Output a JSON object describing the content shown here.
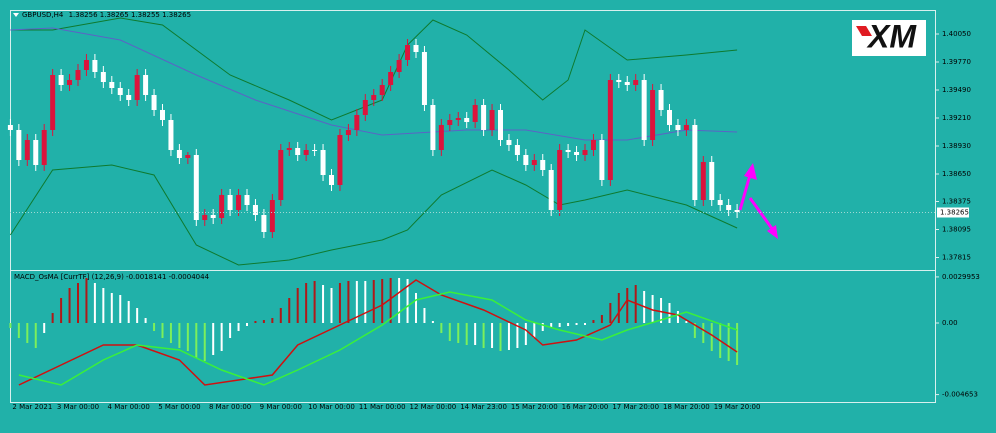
{
  "chart_data": [
    {
      "type": "candlestick",
      "title": "GBPUSD,H4",
      "subtitle": "1.38256 1.38265 1.38255 1.38265",
      "up_color": "#dc143c",
      "down_color": "#ffffff",
      "categories": [
        "2 Mar 2021",
        null,
        null,
        null,
        null,
        null,
        null,
        null,
        "3 Mar 00:00",
        null,
        null,
        null,
        null,
        null,
        "4 Mar 00:00",
        null,
        null,
        null,
        null,
        null,
        "5 Mar 00:00",
        null,
        null,
        null,
        null,
        null,
        "8 Mar 00:00",
        null,
        null,
        null,
        null,
        null,
        "9 Mar 00:00",
        null,
        null,
        null,
        null,
        null,
        "10 Mar 00:00",
        null,
        null,
        null,
        null,
        null,
        "11 Mar 00:00",
        null,
        null,
        null,
        null,
        null,
        "12 Mar 00:00",
        null,
        null,
        null,
        null,
        null,
        "14 Mar 23:00",
        null,
        null,
        null,
        null,
        null,
        "15 Mar 20:00",
        null,
        null,
        null,
        null,
        null,
        "16 Mar 20:00",
        null,
        null,
        null,
        null,
        null,
        "17 Mar 20:00",
        null,
        null,
        null,
        null,
        null,
        "18 Mar 20:00",
        null,
        null,
        null,
        null,
        null,
        "19 Mar 20:00"
      ],
      "ohlc": [
        [
          1.3914,
          1.392,
          1.3903,
          1.3909
        ],
        [
          1.3909,
          1.3915,
          1.3873,
          1.3879
        ],
        [
          1.3879,
          1.3905,
          1.3873,
          1.3899
        ],
        [
          1.3899,
          1.3905,
          1.3868,
          1.3874
        ],
        [
          1.3874,
          1.3915,
          1.3868,
          1.3909
        ],
        [
          1.3909,
          1.397,
          1.3903,
          1.3964
        ],
        [
          1.3964,
          1.397,
          1.3948,
          1.3954
        ],
        [
          1.3954,
          1.3965,
          1.3948,
          1.3959
        ],
        [
          1.3959,
          1.3975,
          1.3953,
          1.3969
        ],
        [
          1.3969,
          1.3985,
          1.3963,
          1.3979
        ],
        [
          1.3979,
          1.3985,
          1.3961,
          1.3967
        ],
        [
          1.3967,
          1.3973,
          1.3951,
          1.3957
        ],
        [
          1.3957,
          1.3963,
          1.3945,
          1.3951
        ],
        [
          1.3951,
          1.3957,
          1.3938,
          1.3944
        ],
        [
          1.3944,
          1.395,
          1.3933,
          1.3939
        ],
        [
          1.3939,
          1.397,
          1.3933,
          1.3964
        ],
        [
          1.3964,
          1.397,
          1.3938,
          1.3944
        ],
        [
          1.3944,
          1.395,
          1.3923,
          1.3929
        ],
        [
          1.3929,
          1.3935,
          1.3913,
          1.3919
        ],
        [
          1.3919,
          1.3925,
          1.3883,
          1.3889
        ],
        [
          1.3889,
          1.3895,
          1.3875,
          1.3881
        ],
        [
          1.3881,
          1.3887,
          1.3875,
          1.3884
        ],
        [
          1.3884,
          1.389,
          1.3813,
          1.3819
        ],
        [
          1.3819,
          1.383,
          1.3813,
          1.3824
        ],
        [
          1.3824,
          1.383,
          1.3815,
          1.3821
        ],
        [
          1.3821,
          1.385,
          1.3815,
          1.3844
        ],
        [
          1.3844,
          1.385,
          1.3823,
          1.3829
        ],
        [
          1.3829,
          1.385,
          1.3823,
          1.3844
        ],
        [
          1.3844,
          1.385,
          1.3828,
          1.3834
        ],
        [
          1.3834,
          1.384,
          1.3818,
          1.3824
        ],
        [
          1.3824,
          1.383,
          1.3801,
          1.3807
        ],
        [
          1.3807,
          1.3845,
          1.3801,
          1.3839
        ],
        [
          1.3839,
          1.3895,
          1.3833,
          1.3889
        ],
        [
          1.3889,
          1.3897,
          1.3883,
          1.3891
        ],
        [
          1.3891,
          1.3897,
          1.3878,
          1.3884
        ],
        [
          1.3884,
          1.3895,
          1.3878,
          1.3889
        ],
        [
          1.3889,
          1.3895,
          1.3883,
          1.3889
        ],
        [
          1.3889,
          1.3895,
          1.3858,
          1.3864
        ],
        [
          1.3864,
          1.387,
          1.3848,
          1.3854
        ],
        [
          1.3854,
          1.391,
          1.3848,
          1.3904
        ],
        [
          1.3904,
          1.3915,
          1.3898,
          1.3909
        ],
        [
          1.3909,
          1.393,
          1.3903,
          1.3924
        ],
        [
          1.3924,
          1.3945,
          1.3918,
          1.3939
        ],
        [
          1.3939,
          1.395,
          1.3933,
          1.3944
        ],
        [
          1.3944,
          1.396,
          1.3938,
          1.3954
        ],
        [
          1.3954,
          1.3973,
          1.3948,
          1.3967
        ],
        [
          1.3967,
          1.3985,
          1.3961,
          1.3979
        ],
        [
          1.3979,
          1.4,
          1.3973,
          1.3994
        ],
        [
          1.3994,
          1.4,
          1.3981,
          1.3987
        ],
        [
          1.3987,
          1.3993,
          1.3928,
          1.3934
        ],
        [
          1.3934,
          1.394,
          1.3883,
          1.3889
        ],
        [
          1.3889,
          1.392,
          1.3883,
          1.3914
        ],
        [
          1.3914,
          1.3925,
          1.3908,
          1.3919
        ],
        [
          1.3919,
          1.3927,
          1.3913,
          1.3921
        ],
        [
          1.3921,
          1.3927,
          1.3911,
          1.3917
        ],
        [
          1.3917,
          1.394,
          1.3911,
          1.3934
        ],
        [
          1.3934,
          1.394,
          1.3903,
          1.3909
        ],
        [
          1.3909,
          1.3935,
          1.3903,
          1.3929
        ],
        [
          1.3929,
          1.3935,
          1.3893,
          1.3899
        ],
        [
          1.3899,
          1.3905,
          1.3888,
          1.3894
        ],
        [
          1.3894,
          1.39,
          1.3878,
          1.3884
        ],
        [
          1.3884,
          1.389,
          1.3868,
          1.3874
        ],
        [
          1.3874,
          1.3885,
          1.3868,
          1.3879
        ],
        [
          1.3879,
          1.3885,
          1.3863,
          1.3869
        ],
        [
          1.3869,
          1.3875,
          1.3823,
          1.3829
        ],
        [
          1.3829,
          1.3895,
          1.3823,
          1.3889
        ],
        [
          1.3889,
          1.3895,
          1.3881,
          1.3887
        ],
        [
          1.3887,
          1.3893,
          1.3878,
          1.3884
        ],
        [
          1.3884,
          1.3895,
          1.3878,
          1.3889
        ],
        [
          1.3889,
          1.3905,
          1.3883,
          1.3899
        ],
        [
          1.3899,
          1.3905,
          1.3853,
          1.3859
        ],
        [
          1.3859,
          1.3965,
          1.3853,
          1.3959
        ],
        [
          1.3959,
          1.3965,
          1.3951,
          1.3957
        ],
        [
          1.3957,
          1.3963,
          1.3948,
          1.3954
        ],
        [
          1.3954,
          1.3965,
          1.3948,
          1.3959
        ],
        [
          1.3959,
          1.3965,
          1.3893,
          1.3899
        ],
        [
          1.3899,
          1.3955,
          1.3893,
          1.3949
        ],
        [
          1.3949,
          1.3955,
          1.3923,
          1.3929
        ],
        [
          1.3929,
          1.3935,
          1.3908,
          1.3914
        ],
        [
          1.3914,
          1.392,
          1.3903,
          1.3909
        ],
        [
          1.3909,
          1.392,
          1.3903,
          1.3914
        ],
        [
          1.3914,
          1.392,
          1.3833,
          1.3839
        ],
        [
          1.3839,
          1.3883,
          1.3833,
          1.3877
        ],
        [
          1.3877,
          1.3883,
          1.3833,
          1.3839
        ],
        [
          1.3839,
          1.3845,
          1.3828,
          1.3834
        ],
        [
          1.3834,
          1.384,
          1.3823,
          1.3829
        ],
        [
          1.3829,
          1.3835,
          1.3821,
          1.3827
        ]
      ],
      "overlays": [
        {
          "color": "#0e7a2e",
          "x": [
            0,
            5,
            13,
            18,
            26,
            33,
            38,
            44,
            47,
            50,
            54,
            59,
            63,
            66,
            68,
            73,
            80,
            86
          ],
          "values": [
            1.4009,
            1.4009,
            1.4021,
            1.4014,
            1.3964,
            1.3939,
            1.3919,
            1.3939,
            1.3994,
            1.4019,
            1.4004,
            1.3969,
            1.3939,
            1.3959,
            1.4009,
            1.3979,
            1.3984,
            1.3989
          ]
        },
        {
          "color": "#0e7a2e",
          "x": [
            0,
            5,
            12,
            17,
            22,
            27,
            33,
            38,
            44,
            47,
            51,
            57,
            61,
            65,
            68,
            73,
            80,
            86
          ],
          "values": [
            1.3804,
            1.3869,
            1.3874,
            1.3864,
            1.3794,
            1.3774,
            1.3779,
            1.3789,
            1.3799,
            1.3809,
            1.3844,
            1.3869,
            1.3854,
            1.3834,
            1.3839,
            1.3849,
            1.3834,
            1.3811
          ]
        },
        {
          "color": "#5b63c6",
          "x": [
            0,
            5,
            13,
            22,
            29,
            38,
            44,
            54,
            61,
            68,
            73,
            80,
            86
          ],
          "values": [
            1.4009,
            1.4011,
            1.3999,
            1.3964,
            1.3939,
            1.3914,
            1.3904,
            1.3909,
            1.3909,
            1.3899,
            1.3899,
            1.3909,
            1.3907
          ]
        }
      ],
      "current_price": {
        "value": 1.38265,
        "label": "1.38265"
      },
      "ylim": [
        1.3771,
        1.4029
      ],
      "yticks": [
        {
          "value": 1.4005,
          "label": "1.40050"
        },
        {
          "value": 1.3977,
          "label": "1.39770"
        },
        {
          "value": 1.3949,
          "label": "1.39490"
        },
        {
          "value": 1.3921,
          "label": "1.39210"
        },
        {
          "value": 1.3893,
          "label": "1.38930"
        },
        {
          "value": 1.3865,
          "label": "1.38650"
        },
        {
          "value": 1.38375,
          "label": "1.38375"
        },
        {
          "value": 1.38095,
          "label": "1.38095"
        },
        {
          "value": 1.37815,
          "label": "1.37815"
        }
      ]
    },
    {
      "type": "macd",
      "title": "MACD_OsMA [CurrTF] (12,26,9) -0.0018141 -0.0004044",
      "pos_rise_color": "#b01818",
      "neg_fall_color": "#7cf05a",
      "flat_color": "#ffffff",
      "histogram": [
        -0.000325,
        -0.000975,
        -0.0013,
        -0.001625,
        -0.00065,
        0.00065,
        0.001625,
        0.002275,
        0.0026,
        0.002925,
        0.0026,
        0.002275,
        0.00195,
        0.00182,
        0.00143,
        0.000975,
        0.000325,
        -0.00052,
        -0.000975,
        -0.0013,
        -0.001625,
        -0.00182,
        -0.002275,
        -0.00247,
        -0.00208,
        -0.00182,
        -0.000975,
        -0.00052,
        -0.000195,
        0.00013,
        0.000195,
        0.000325,
        0.000975,
        0.001625,
        0.002275,
        0.0026,
        0.00273,
        0.00247,
        0.002275,
        0.0026,
        0.00273,
        0.00273,
        0.00273,
        0.002795,
        0.00286,
        0.002925,
        0.002925,
        0.00286,
        0.00195,
        0.000975,
        0.00013,
        -0.00065,
        -0.00117,
        -0.0013,
        -0.00143,
        -0.00143,
        -0.001625,
        -0.001625,
        -0.00182,
        -0.001755,
        -0.001625,
        -0.00143,
        -0.000975,
        -0.00052,
        -0.000325,
        -0.00026,
        -0.000195,
        -0.00013,
        -0.00013,
        0.000195,
        0.00052,
        0.0013,
        0.00195,
        0.002275,
        0.00247,
        0.00208,
        0.00182,
        0.001625,
        0.0013,
        0.00078,
        0.00013,
        -0.000975,
        -0.0013,
        -0.00182,
        -0.002275,
        -0.00247,
        -0.00273
      ],
      "lines": [
        {
          "color": "#d01010",
          "x": [
            1,
            6,
            11,
            15,
            20,
            23,
            27,
            31,
            34,
            39,
            44,
            48,
            51,
            56,
            61,
            63,
            67,
            71,
            73,
            76,
            79,
            83,
            86
          ],
          "values": [
            -0.00403,
            -0.00273,
            -0.00143,
            -0.00143,
            -0.002405,
            -0.00403,
            -0.003705,
            -0.00338,
            -0.00143,
            -0.00013,
            0.00117,
            0.002795,
            0.00182,
            0.000845,
            -0.000455,
            -0.00143,
            -0.001105,
            -0.00013,
            0.001495,
            0.000845,
            0.00052,
            -0.00078,
            -0.001885
          ]
        },
        {
          "color": "#3af03a",
          "x": [
            1,
            6,
            11,
            15,
            20,
            25,
            30,
            34,
            39,
            44,
            48,
            52,
            57,
            61,
            65,
            70,
            73,
            77,
            80,
            86
          ],
          "values": [
            -0.00338,
            -0.00403,
            -0.002405,
            -0.00143,
            -0.001755,
            -0.003055,
            -0.00403,
            -0.003055,
            -0.001755,
            -0.00013,
            0.001495,
            0.002015,
            0.001495,
            0.000195,
            -0.000455,
            -0.001105,
            -0.000455,
            0.000195,
            0.000715,
            -0.000455
          ]
        }
      ],
      "ylim": [
        -0.005005,
        0.003315
      ],
      "yticks": [
        0.0029953,
        {
          "value": 0,
          "label": "0.00"
        },
        -0.004653
      ]
    }
  ],
  "logo": "XM"
}
